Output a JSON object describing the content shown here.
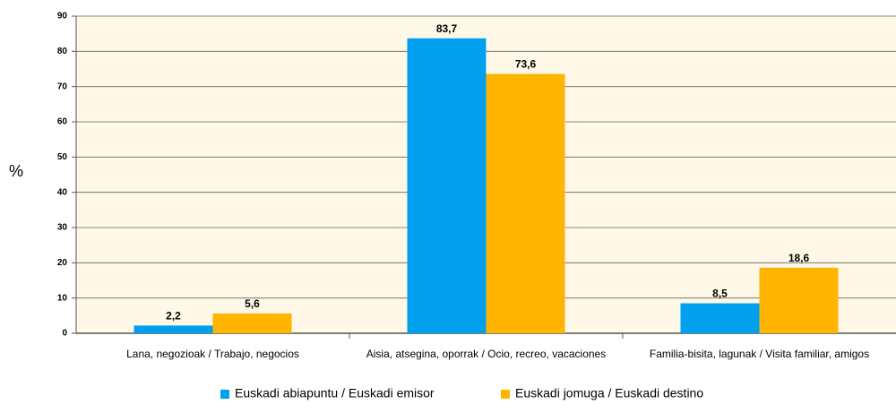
{
  "chart_data": {
    "type": "bar",
    "y_label": "%",
    "categories": [
      "Lana, negozioak / Trabajo, negocios",
      "Aisia, atsegina, oporrak / Ocio, recreo, vacaciones",
      "Familia-bisita, lagunak / Visita familiar, amigos"
    ],
    "series": [
      {
        "name": "Euskadi abiapuntu / Euskadi emisor",
        "color": "#00a0ef",
        "values": [
          2.2,
          83.7,
          8.5
        ],
        "value_labels": [
          "2,2",
          "83,7",
          "8,5"
        ]
      },
      {
        "name": "Euskadi jomuga / Euskadi destino",
        "color": "#ffb400",
        "values": [
          5.6,
          73.6,
          18.6
        ],
        "value_labels": [
          "5,6",
          "73,6",
          "18,6"
        ]
      }
    ],
    "ylim": [
      0,
      90
    ],
    "yticks": [
      0,
      10,
      20,
      30,
      40,
      50,
      60,
      70,
      80,
      90
    ],
    "grid": true,
    "legend": "bottom"
  }
}
